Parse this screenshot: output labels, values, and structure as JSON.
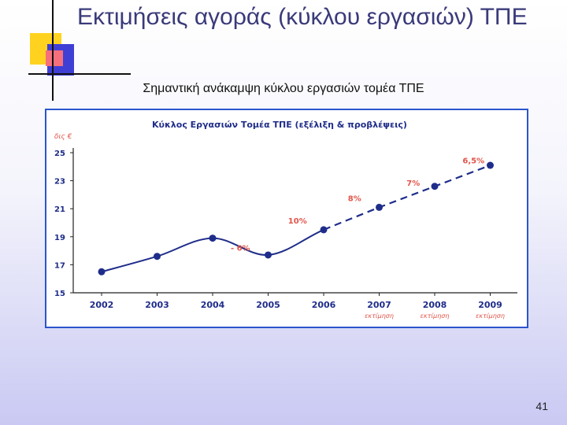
{
  "slide": {
    "title": "Εκτιμήσεις αγοράς (κύκλου εργασιών) ΤΠΕ",
    "subtitle": "Σημαντική ανάκαμψη κύκλου εργασιών τομέα ΤΠΕ",
    "page_number": "41"
  },
  "chart_data": {
    "type": "line",
    "title": "Κύκλος Εργασιών Τομέα ΤΠΕ (εξέλιξη & προβλέψεις)",
    "ylabel": "δις €",
    "xlabel": "",
    "categories": [
      "2002",
      "2003",
      "2004",
      "2005",
      "2006",
      "2007",
      "2008",
      "2009"
    ],
    "category_notes": [
      "",
      "",
      "",
      "",
      "",
      "εκτίμηση",
      "εκτίμηση",
      "εκτίμηση"
    ],
    "series": [
      {
        "values": [
          16.5,
          17.6,
          18.9,
          17.7,
          19.5,
          21.1,
          22.6,
          24.1
        ],
        "segment_labels": [
          "",
          "",
          "- 6%",
          "10%",
          "8%",
          "7%",
          "6,5%"
        ],
        "color": "#1f2d8a",
        "estimate_from_index": 4
      }
    ],
    "ylim": [
      15,
      25
    ],
    "yticks": [
      15,
      17,
      19,
      21,
      23,
      25
    ],
    "grid": false,
    "label_color": "#e2554a",
    "colors": {
      "accent": "#1f2d8a",
      "frame": "#2b55cc",
      "growth_label": "#e2554a"
    }
  }
}
